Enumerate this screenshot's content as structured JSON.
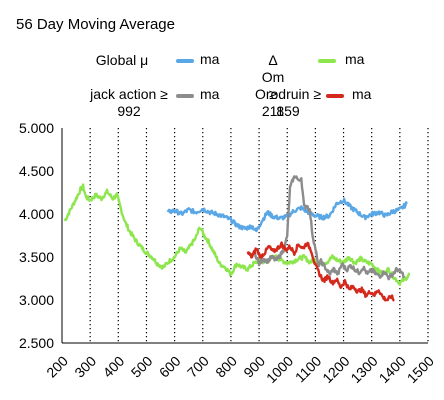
{
  "chart_data": {
    "type": "line",
    "title": "56 Day Moving Average",
    "xlabel": "",
    "ylabel": "",
    "xlim": [
      200,
      1500
    ],
    "ylim": [
      2.5,
      5.0
    ],
    "x_ticks": [
      200,
      300,
      400,
      500,
      600,
      700,
      800,
      900,
      1000,
      1100,
      1200,
      1300,
      1400,
      1500
    ],
    "x_tick_labels": [
      "200",
      "300",
      "400",
      "500",
      "600",
      "700",
      "800",
      "900",
      "1000",
      "1100",
      "1200",
      "1300",
      "1400",
      "1500"
    ],
    "y_ticks": [
      2.5,
      3.0,
      3.5,
      4.0,
      4.5,
      5.0
    ],
    "y_tick_labels": [
      "2.500",
      "3.000",
      "3.500",
      "4.000",
      "4.500",
      "5.000"
    ],
    "grid": "vertical dotted",
    "legend_position": "top",
    "series": [
      {
        "name": "Global μ",
        "legend_suffix": "ma",
        "color": "#5aa7e6",
        "points": [
          [
            575,
            4.02
          ],
          [
            600,
            4.04
          ],
          [
            625,
            4.0
          ],
          [
            650,
            4.05
          ],
          [
            675,
            4.02
          ],
          [
            700,
            4.06
          ],
          [
            725,
            4.02
          ],
          [
            750,
            4.0
          ],
          [
            775,
            3.97
          ],
          [
            800,
            3.93
          ],
          [
            825,
            3.86
          ],
          [
            850,
            3.83
          ],
          [
            875,
            3.86
          ],
          [
            890,
            3.8
          ],
          [
            910,
            3.92
          ],
          [
            930,
            4.02
          ],
          [
            950,
            3.97
          ],
          [
            975,
            3.95
          ],
          [
            1000,
            3.97
          ],
          [
            1025,
            4.04
          ],
          [
            1050,
            4.07
          ],
          [
            1075,
            4.02
          ],
          [
            1100,
            3.98
          ],
          [
            1125,
            3.96
          ],
          [
            1150,
            3.98
          ],
          [
            1175,
            4.12
          ],
          [
            1200,
            4.16
          ],
          [
            1225,
            4.08
          ],
          [
            1250,
            4.02
          ],
          [
            1275,
            3.96
          ],
          [
            1300,
            4.0
          ],
          [
            1325,
            4.02
          ],
          [
            1350,
            3.98
          ],
          [
            1375,
            4.03
          ],
          [
            1400,
            4.05
          ],
          [
            1425,
            4.12
          ]
        ]
      },
      {
        "name": "Δ Om ≥ 211",
        "legend_suffix": "ma",
        "color": "#8ee64e",
        "points": [
          [
            210,
            3.92
          ],
          [
            230,
            4.05
          ],
          [
            250,
            4.18
          ],
          [
            265,
            4.28
          ],
          [
            275,
            4.32
          ],
          [
            285,
            4.2
          ],
          [
            300,
            4.16
          ],
          [
            320,
            4.22
          ],
          [
            340,
            4.18
          ],
          [
            360,
            4.26
          ],
          [
            380,
            4.18
          ],
          [
            395,
            4.22
          ],
          [
            410,
            4.05
          ],
          [
            425,
            3.9
          ],
          [
            440,
            3.8
          ],
          [
            460,
            3.7
          ],
          [
            480,
            3.62
          ],
          [
            500,
            3.55
          ],
          [
            520,
            3.5
          ],
          [
            540,
            3.42
          ],
          [
            560,
            3.38
          ],
          [
            580,
            3.45
          ],
          [
            600,
            3.5
          ],
          [
            620,
            3.6
          ],
          [
            640,
            3.55
          ],
          [
            660,
            3.65
          ],
          [
            675,
            3.72
          ],
          [
            690,
            3.85
          ],
          [
            705,
            3.75
          ],
          [
            720,
            3.68
          ],
          [
            740,
            3.55
          ],
          [
            760,
            3.42
          ],
          [
            780,
            3.38
          ],
          [
            800,
            3.3
          ],
          [
            820,
            3.42
          ],
          [
            840,
            3.38
          ],
          [
            860,
            3.36
          ],
          [
            880,
            3.42
          ],
          [
            900,
            3.46
          ],
          [
            920,
            3.44
          ],
          [
            940,
            3.48
          ],
          [
            960,
            3.5
          ],
          [
            980,
            3.46
          ],
          [
            1000,
            3.43
          ],
          [
            1020,
            3.45
          ],
          [
            1040,
            3.48
          ],
          [
            1060,
            3.5
          ],
          [
            1080,
            3.44
          ],
          [
            1100,
            3.47
          ],
          [
            1120,
            3.42
          ],
          [
            1140,
            3.44
          ],
          [
            1160,
            3.5
          ],
          [
            1180,
            3.46
          ],
          [
            1200,
            3.44
          ],
          [
            1220,
            3.5
          ],
          [
            1240,
            3.43
          ],
          [
            1260,
            3.48
          ],
          [
            1280,
            3.44
          ],
          [
            1300,
            3.42
          ],
          [
            1320,
            3.35
          ],
          [
            1340,
            3.3
          ],
          [
            1360,
            3.36
          ],
          [
            1380,
            3.26
          ],
          [
            1400,
            3.2
          ],
          [
            1420,
            3.25
          ],
          [
            1435,
            3.3
          ]
        ]
      },
      {
        "name": "jack action ≥ 992",
        "legend_suffix": "ma",
        "color": "#8c8c8c",
        "points": [
          [
            885,
            3.55
          ],
          [
            900,
            3.42
          ],
          [
            915,
            3.48
          ],
          [
            930,
            3.45
          ],
          [
            945,
            3.5
          ],
          [
            960,
            3.46
          ],
          [
            975,
            3.52
          ],
          [
            990,
            3.6
          ],
          [
            1000,
            3.75
          ],
          [
            1010,
            4.3
          ],
          [
            1020,
            4.4
          ],
          [
            1030,
            4.45
          ],
          [
            1040,
            4.38
          ],
          [
            1050,
            4.42
          ],
          [
            1060,
            4.08
          ],
          [
            1070,
            4.1
          ],
          [
            1080,
            4.04
          ],
          [
            1090,
            3.75
          ],
          [
            1100,
            3.6
          ],
          [
            1110,
            3.4
          ],
          [
            1120,
            3.45
          ],
          [
            1135,
            3.38
          ],
          [
            1150,
            3.3
          ],
          [
            1165,
            3.36
          ],
          [
            1180,
            3.3
          ],
          [
            1195,
            3.42
          ],
          [
            1210,
            3.35
          ],
          [
            1225,
            3.4
          ],
          [
            1240,
            3.36
          ],
          [
            1255,
            3.32
          ],
          [
            1270,
            3.38
          ],
          [
            1285,
            3.3
          ],
          [
            1300,
            3.35
          ],
          [
            1315,
            3.3
          ],
          [
            1330,
            3.28
          ],
          [
            1345,
            3.33
          ],
          [
            1360,
            3.26
          ],
          [
            1375,
            3.3
          ],
          [
            1390,
            3.36
          ],
          [
            1405,
            3.32
          ],
          [
            1415,
            3.28
          ]
        ]
      },
      {
        "name": "Orodruin ≥ 859",
        "legend_suffix": "ma",
        "color": "#d42a1e",
        "points": [
          [
            860,
            3.55
          ],
          [
            875,
            3.5
          ],
          [
            890,
            3.6
          ],
          [
            905,
            3.5
          ],
          [
            920,
            3.55
          ],
          [
            935,
            3.62
          ],
          [
            950,
            3.56
          ],
          [
            965,
            3.6
          ],
          [
            980,
            3.65
          ],
          [
            995,
            3.58
          ],
          [
            1010,
            3.62
          ],
          [
            1025,
            3.55
          ],
          [
            1040,
            3.65
          ],
          [
            1055,
            3.6
          ],
          [
            1070,
            3.66
          ],
          [
            1085,
            3.58
          ],
          [
            1100,
            3.4
          ],
          [
            1115,
            3.3
          ],
          [
            1130,
            3.22
          ],
          [
            1145,
            3.28
          ],
          [
            1160,
            3.2
          ],
          [
            1175,
            3.24
          ],
          [
            1190,
            3.15
          ],
          [
            1205,
            3.22
          ],
          [
            1220,
            3.12
          ],
          [
            1235,
            3.16
          ],
          [
            1250,
            3.1
          ],
          [
            1265,
            3.12
          ],
          [
            1280,
            3.05
          ],
          [
            1295,
            3.1
          ],
          [
            1310,
            3.06
          ],
          [
            1325,
            3.12
          ],
          [
            1340,
            3.03
          ],
          [
            1355,
            3.0
          ],
          [
            1370,
            3.04
          ],
          [
            1380,
            2.99
          ]
        ]
      }
    ]
  }
}
